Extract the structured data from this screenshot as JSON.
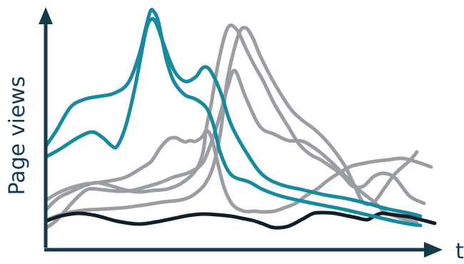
{
  "chart_data": {
    "type": "line",
    "ylabel": "Page views",
    "xlabel": "t",
    "xlim": [
      0,
      540
    ],
    "ylim": [
      0,
      340
    ],
    "grid": false,
    "legend": "none",
    "colors": {
      "axis": "#153a4d",
      "teal": "#178a9e",
      "gray": "#9a9ea4",
      "dark": "#111d29"
    },
    "series": [
      {
        "color": "teal",
        "x": [
          0,
          15,
          35,
          55,
          75,
          95,
          115,
          130,
          140,
          147,
          152,
          157,
          162,
          170,
          180,
          195,
          210,
          225,
          235,
          245,
          260,
          285,
          305,
          330,
          360,
          390,
          420,
          450,
          480,
          510,
          525
        ],
        "y": [
          140,
          162,
          195,
          206,
          210,
          214,
          228,
          265,
          305,
          330,
          328,
          318,
          295,
          258,
          230,
          212,
          206,
          194,
          170,
          130,
          100,
          90,
          79,
          70,
          63,
          57,
          51,
          44,
          37,
          31,
          29
        ]
      },
      {
        "color": "teal",
        "x": [
          0,
          20,
          45,
          65,
          80,
          92,
          100,
          112,
          125,
          140,
          148,
          155,
          165,
          180,
          195,
          210,
          220,
          230,
          245,
          260,
          285,
          305,
          330,
          360,
          390,
          420,
          450,
          480,
          510,
          525
        ],
        "y": [
          125,
          136,
          152,
          160,
          152,
          141,
          140,
          168,
          222,
          300,
          318,
          312,
          284,
          246,
          231,
          237,
          250,
          247,
          216,
          170,
          125,
          99,
          86,
          79,
          72,
          67,
          60,
          52,
          46,
          42
        ]
      },
      {
        "color": "gray",
        "x": [
          0,
          20,
          50,
          80,
          110,
          135,
          148,
          160,
          172,
          182,
          190,
          196,
          202,
          210,
          220,
          225,
          232,
          240,
          250,
          262,
          278,
          292,
          305,
          320,
          335,
          350,
          365,
          380,
          395,
          410,
          428,
          445,
          462,
          480,
          500,
          520,
          540
        ],
        "y": [
          64,
          76,
          86,
          90,
          96,
          110,
          119,
          137,
          150,
          152,
          148,
          146,
          148,
          147,
          154,
          162,
          153,
          121,
          82,
          58,
          49,
          49,
          48,
          49,
          54,
          60,
          71,
          80,
          92,
          102,
          112,
          116,
          119,
          121,
          123,
          118,
          111
        ]
      },
      {
        "color": "gray",
        "x": [
          0,
          8,
          20,
          35,
          50,
          70,
          90,
          110,
          130,
          150,
          170,
          190,
          210,
          220,
          225,
          232,
          242,
          255,
          268,
          280,
          292,
          305,
          320,
          340,
          355,
          370,
          385,
          400,
          415,
          430,
          445,
          460,
          475,
          490,
          510,
          530
        ],
        "y": [
          50,
          59,
          69,
          76,
          83,
          89,
          85,
          79,
          76,
          78,
          80,
          88,
          106,
          130,
          165,
          200,
          258,
          306,
          303,
          278,
          254,
          231,
          200,
          167,
          143,
          129,
          121,
          111,
          100,
          84,
          84,
          98,
          102,
          95,
          70,
          60
        ]
      },
      {
        "color": "gray",
        "x": [
          0,
          20,
          50,
          80,
          110,
          140,
          165,
          185,
          200,
          215,
          225,
          235,
          245,
          255,
          270,
          280,
          290,
          300,
          315,
          330,
          345,
          360,
          375,
          390,
          405,
          420,
          432,
          445,
          460,
          475,
          490,
          510,
          520
        ],
        "y": [
          36,
          44,
          50,
          52,
          54,
          58,
          62,
          64,
          68,
          78,
          90,
          113,
          160,
          236,
          296,
          306,
          292,
          268,
          238,
          212,
          190,
          176,
          165,
          151,
          133,
          111,
          86,
          61,
          62,
          82,
          102,
          120,
          132
        ]
      },
      {
        "color": "gray",
        "x": [
          0,
          15,
          30,
          45,
          60,
          80,
          100,
          120,
          140,
          160,
          180,
          200,
          220,
          235,
          245,
          255,
          265,
          280,
          300,
          320,
          340,
          360,
          380,
          400,
          420,
          440,
          460,
          475,
          490,
          505,
          520
        ],
        "y": [
          25,
          36,
          53,
          69,
          80,
          79,
          77,
          78,
          83,
          89,
          97,
          103,
          117,
          154,
          187,
          223,
          246,
          209,
          168,
          157,
          148,
          147,
          135,
          118,
          98,
          78,
          62,
          48,
          42,
          37,
          33
        ]
      },
      {
        "color": "dark",
        "x": [
          0,
          20,
          45,
          70,
          100,
          130,
          155,
          180,
          200,
          220,
          240,
          260,
          275,
          290,
          305,
          320,
          340,
          360,
          375,
          390,
          405,
          420,
          435,
          450,
          460,
          470,
          480,
          495,
          510,
          530,
          545
        ],
        "y": [
          35,
          42,
          46,
          43,
          35,
          31,
          34,
          39,
          43,
          45,
          44,
          42,
          39,
          36,
          31,
          26,
          28,
          38,
          46,
          47,
          46,
          43,
          40,
          37,
          42,
          46,
          45,
          43,
          41,
          36,
          32
        ]
      }
    ]
  }
}
